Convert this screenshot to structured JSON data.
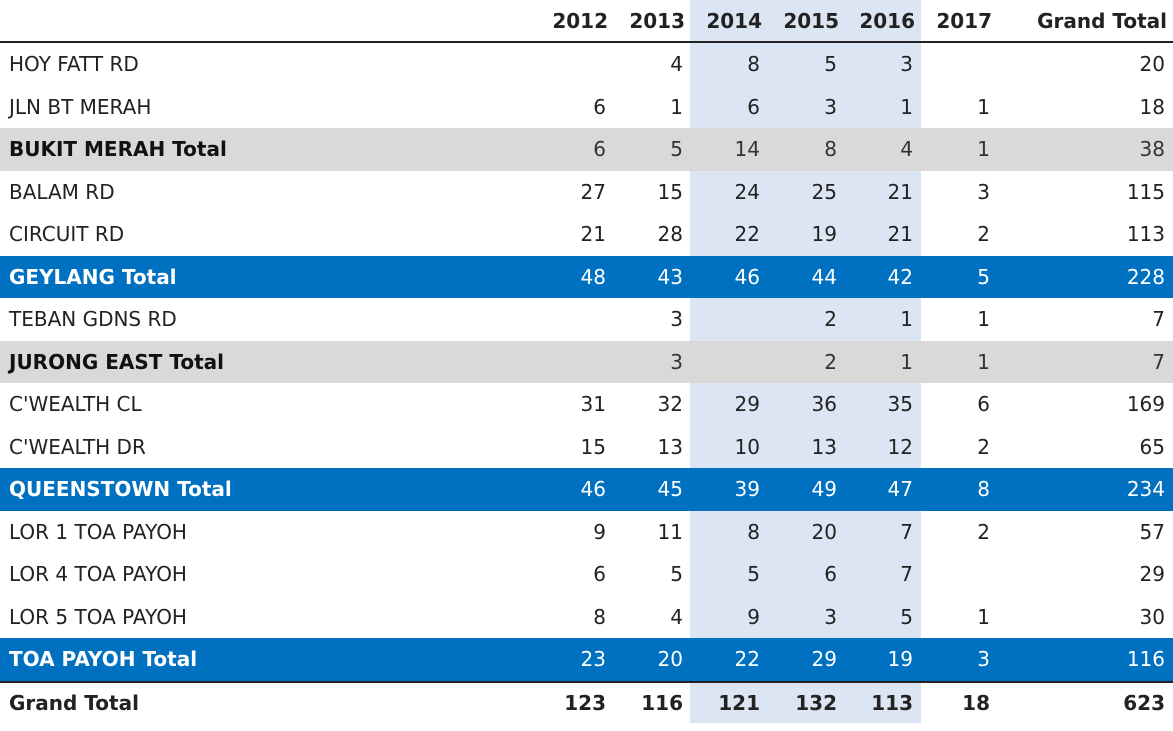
{
  "chart_data": {
    "type": "table",
    "columns": [
      "2012",
      "2013",
      "2014",
      "2015",
      "2016",
      "2017",
      "Grand Total"
    ],
    "highlight_columns": [
      "2014",
      "2015",
      "2016"
    ],
    "colors": {
      "subtotal_blue": "#0070c0",
      "subtotal_grey": "#d9d9d9",
      "highlight_band": "#dce5f4"
    },
    "rows": [
      {
        "kind": "detail",
        "label": "HOY FATT RD",
        "values": [
          "",
          "4",
          "8",
          "5",
          "3",
          "",
          "20"
        ]
      },
      {
        "kind": "detail",
        "label": "JLN BT MERAH",
        "values": [
          "6",
          "1",
          "6",
          "3",
          "1",
          "1",
          "18"
        ]
      },
      {
        "kind": "subtotal-grey",
        "label": "BUKIT MERAH Total",
        "values": [
          "6",
          "5",
          "14",
          "8",
          "4",
          "1",
          "38"
        ]
      },
      {
        "kind": "detail",
        "label": "BALAM RD",
        "values": [
          "27",
          "15",
          "24",
          "25",
          "21",
          "3",
          "115"
        ]
      },
      {
        "kind": "detail",
        "label": "CIRCUIT RD",
        "values": [
          "21",
          "28",
          "22",
          "19",
          "21",
          "2",
          "113"
        ]
      },
      {
        "kind": "subtotal-blue",
        "label": "GEYLANG Total",
        "values": [
          "48",
          "43",
          "46",
          "44",
          "42",
          "5",
          "228"
        ]
      },
      {
        "kind": "detail",
        "label": "TEBAN GDNS RD",
        "values": [
          "",
          "3",
          "",
          "2",
          "1",
          "1",
          "7"
        ]
      },
      {
        "kind": "subtotal-grey",
        "label": "JURONG EAST Total",
        "values": [
          "",
          "3",
          "",
          "2",
          "1",
          "1",
          "7"
        ]
      },
      {
        "kind": "detail",
        "label": "C'WEALTH CL",
        "values": [
          "31",
          "32",
          "29",
          "36",
          "35",
          "6",
          "169"
        ]
      },
      {
        "kind": "detail",
        "label": "C'WEALTH DR",
        "values": [
          "15",
          "13",
          "10",
          "13",
          "12",
          "2",
          "65"
        ]
      },
      {
        "kind": "subtotal-blue",
        "label": "QUEENSTOWN Total",
        "values": [
          "46",
          "45",
          "39",
          "49",
          "47",
          "8",
          "234"
        ]
      },
      {
        "kind": "detail",
        "label": "LOR 1 TOA PAYOH",
        "values": [
          "9",
          "11",
          "8",
          "20",
          "7",
          "2",
          "57"
        ]
      },
      {
        "kind": "detail",
        "label": "LOR 4 TOA PAYOH",
        "values": [
          "6",
          "5",
          "5",
          "6",
          "7",
          "",
          "29"
        ]
      },
      {
        "kind": "detail",
        "label": "LOR 5 TOA PAYOH",
        "values": [
          "8",
          "4",
          "9",
          "3",
          "5",
          "1",
          "30"
        ]
      },
      {
        "kind": "subtotal-blue",
        "label": "TOA PAYOH Total",
        "values": [
          "23",
          "20",
          "22",
          "29",
          "19",
          "3",
          "116"
        ]
      },
      {
        "kind": "grand",
        "label": "Grand Total",
        "values": [
          "123",
          "116",
          "121",
          "132",
          "113",
          "18",
          "623"
        ]
      }
    ]
  }
}
